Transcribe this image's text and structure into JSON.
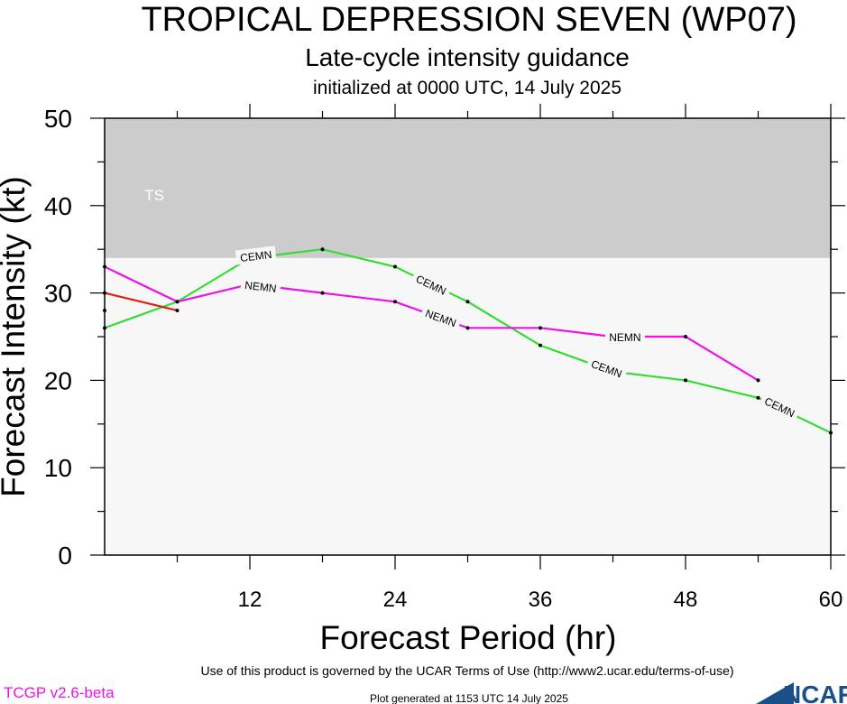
{
  "chart_data": {
    "type": "line",
    "title": "TROPICAL DEPRESSION SEVEN (WP07)",
    "subtitle": "Late-cycle intensity guidance",
    "subsubtitle": "initialized at 0000 UTC, 14 July 2025",
    "xlabel": "Forecast Period (hr)",
    "ylabel": "Forecast Intensity (kt)",
    "xlim": [
      0,
      60
    ],
    "ylim": [
      0,
      50
    ],
    "xticks": [
      12,
      24,
      36,
      48,
      60
    ],
    "yticks": [
      0,
      10,
      20,
      30,
      40,
      50
    ],
    "grid": false,
    "bands": [
      {
        "label": "TS",
        "from": 34,
        "to": 50,
        "color": "#cccccc"
      },
      {
        "label": "",
        "from": 0,
        "to": 34,
        "color": "#f7f7f7"
      }
    ],
    "series": [
      {
        "name": "CEMN",
        "color": "#33dd33",
        "x": [
          0,
          6,
          12,
          18,
          24,
          30,
          36,
          42,
          48,
          54,
          60
        ],
        "y": [
          26,
          29,
          34,
          35,
          33,
          29,
          24,
          21,
          20,
          18,
          14
        ]
      },
      {
        "name": "NEMN",
        "color": "#ee11ee",
        "x": [
          0,
          6,
          12,
          18,
          24,
          30,
          36,
          42,
          48,
          54
        ],
        "y": [
          33,
          29,
          31,
          30,
          29,
          26,
          26,
          25,
          25,
          20
        ]
      },
      {
        "name": "",
        "color": "#dd2211",
        "x": [
          0,
          6
        ],
        "y": [
          30,
          28
        ]
      }
    ],
    "observed": {
      "x": 0,
      "y": 28
    },
    "line_labels": [
      {
        "text": "CEMN",
        "series": 0,
        "x": 12.5,
        "y": 34.3
      },
      {
        "text": "CEMN",
        "series": 0,
        "x": 27,
        "y": 31
      },
      {
        "text": "CEMN",
        "series": 0,
        "x": 41.5,
        "y": 21.4
      },
      {
        "text": "CEMN",
        "series": 0,
        "x": 55.8,
        "y": 17
      },
      {
        "text": "NEMN",
        "series": 1,
        "x": 12.9,
        "y": 30.8
      },
      {
        "text": "NEMN",
        "series": 1,
        "x": 27.8,
        "y": 27.2
      },
      {
        "text": "NEMN",
        "series": 1,
        "x": 43,
        "y": 25
      }
    ]
  },
  "footer": {
    "terms": "Use of this product is governed by the UCAR Terms of Use (http://www2.ucar.edu/terms-of-use)",
    "version": "TCGP v2.6-beta",
    "generated": "Plot generated at 1153 UTC   14 July 2025",
    "logo": "NCAR"
  }
}
